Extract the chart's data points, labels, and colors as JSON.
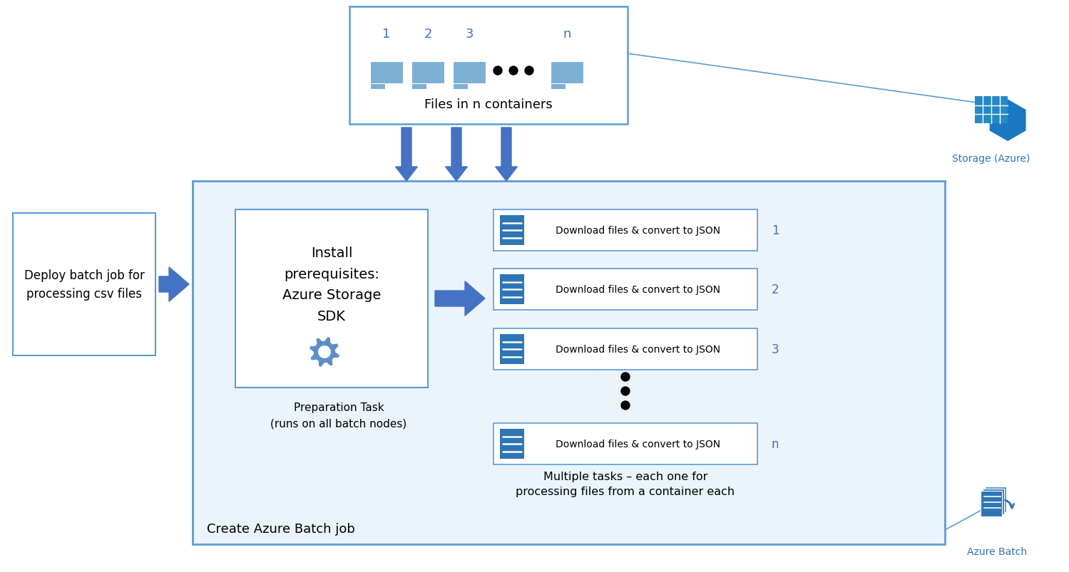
{
  "bg_color": "#ffffff",
  "border_col": "#5B9BD5",
  "arrow_color": "#4472C4",
  "folder_color": "#7BAFD4",
  "doc_color": "#2E75B6",
  "task_label": "Download files & convert to JSON",
  "task_nums": [
    "1",
    "2",
    "3",
    "n"
  ],
  "folder_nums": [
    "1",
    "2",
    "3",
    "n"
  ],
  "prep_text": "Install\nprerequisites:\nAzure Storage\nSDK",
  "prep_task_text1": "Preparation Task",
  "prep_task_text2": "(runs on all batch nodes)",
  "deploy_text": "Deploy batch job for\nprocessing csv files",
  "storage_text": "Files in n containers",
  "batch_label": "Create Azure Batch job",
  "storage_azure_label": "Storage (Azure)",
  "azure_batch_label": "Azure Batch",
  "multi_task_text": "Multiple tasks – each one for\nprocessing files from a container each",
  "main_box_bg": "#EBF3FB"
}
